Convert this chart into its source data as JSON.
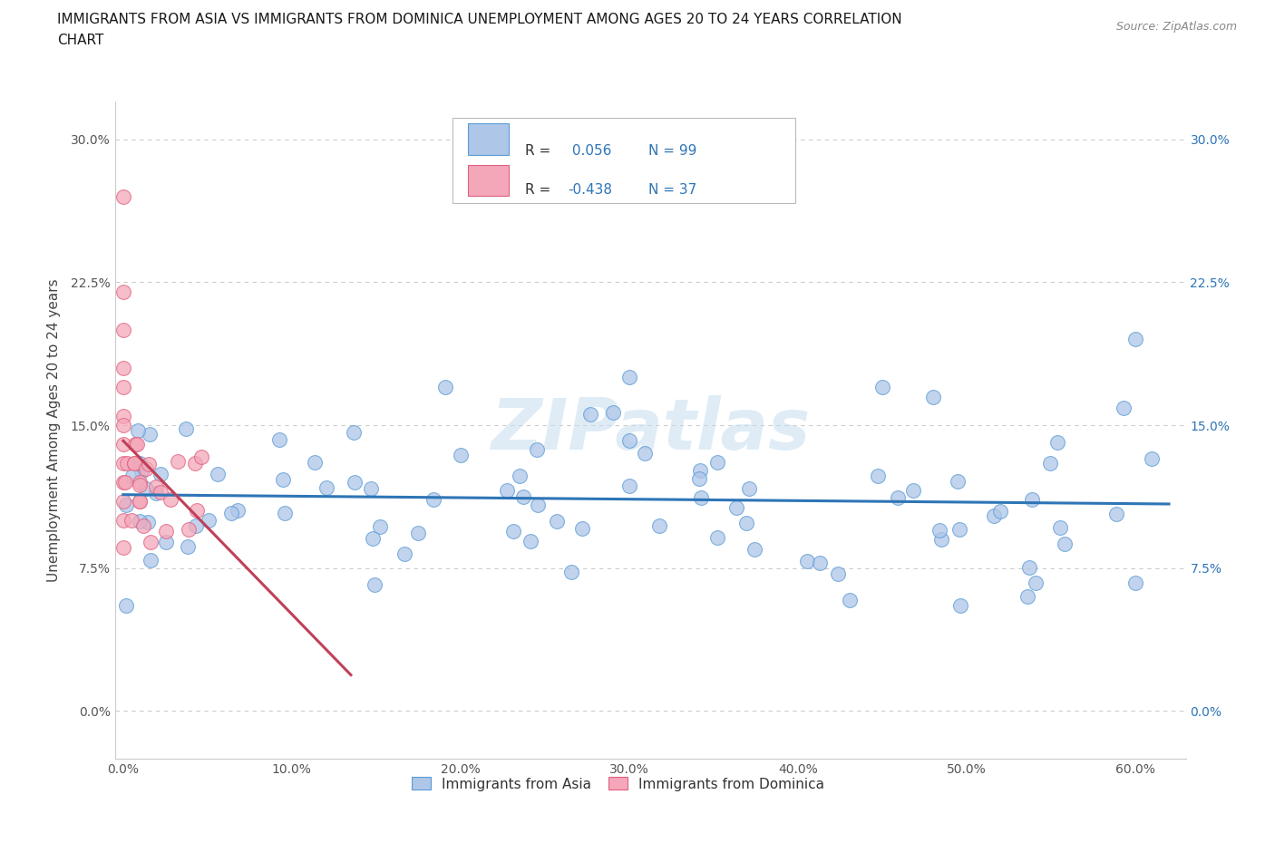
{
  "title_line1": "IMMIGRANTS FROM ASIA VS IMMIGRANTS FROM DOMINICA UNEMPLOYMENT AMONG AGES 20 TO 24 YEARS CORRELATION",
  "title_line2": "CHART",
  "source": "Source: ZipAtlas.com",
  "ylabel": "Unemployment Among Ages 20 to 24 years",
  "asia_R": 0.056,
  "asia_N": 99,
  "dominica_R": -0.438,
  "dominica_N": 37,
  "asia_fill_color": "#aec6e8",
  "asia_edge_color": "#5b9bd5",
  "asia_line_color": "#2e75b6",
  "dominica_fill_color": "#f4a7b9",
  "dominica_edge_color": "#e06080",
  "dominica_line_color": "#c0405a",
  "legend_label_asia": "Immigrants from Asia",
  "legend_label_dominica": "Immigrants from Dominica",
  "watermark": "ZIPatlas",
  "text_color_blue": "#2e75b6",
  "text_color_dark": "#333333",
  "text_color_gray": "#888888",
  "grid_color": "#cccccc"
}
